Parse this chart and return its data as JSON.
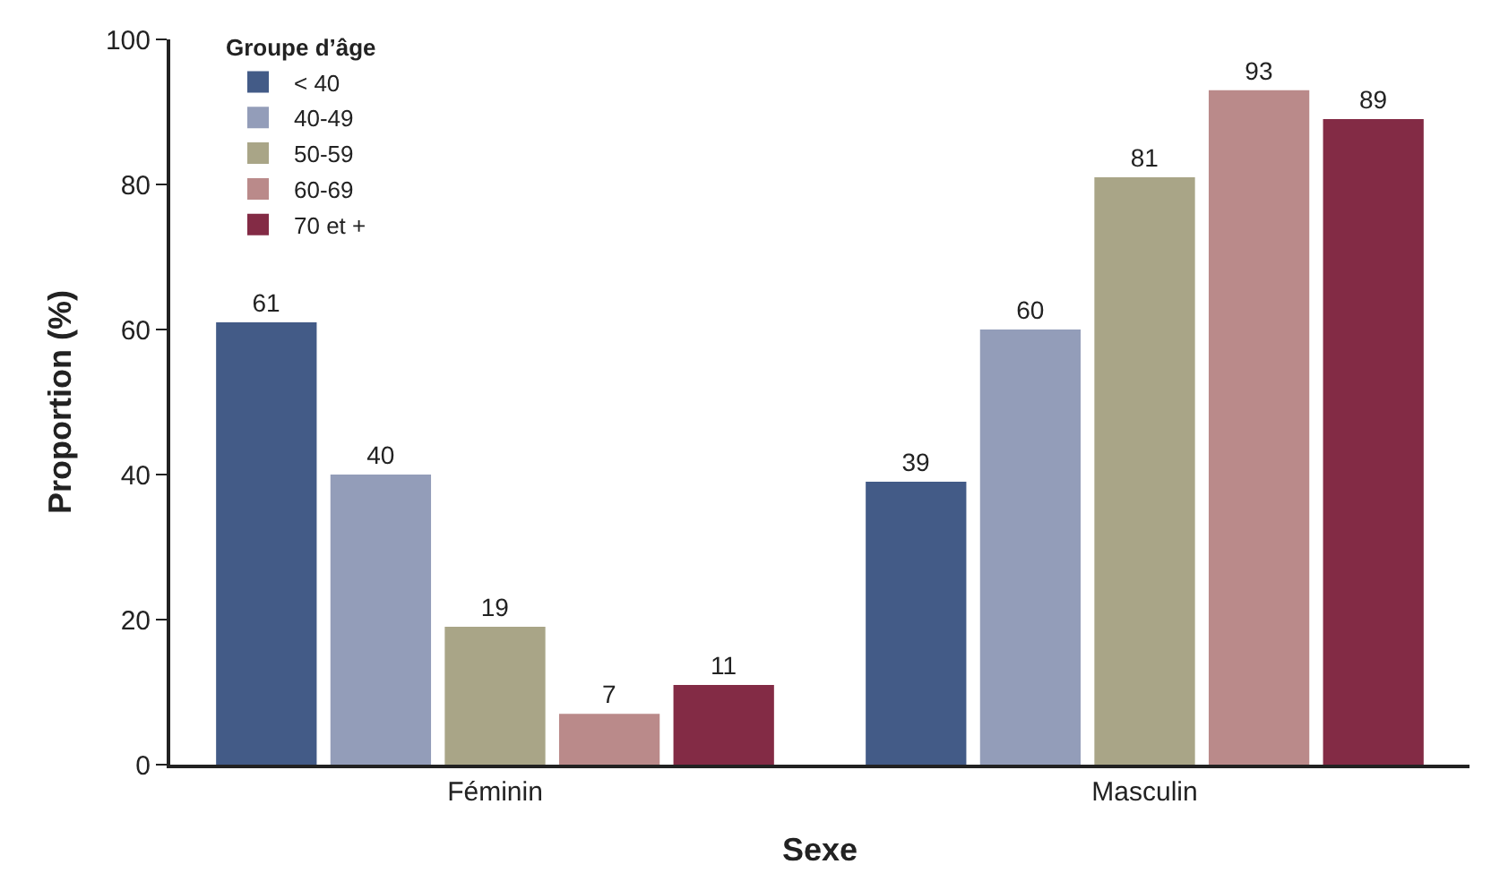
{
  "chart_data": {
    "type": "bar",
    "xlabel": "Sexe",
    "ylabel": "Proportion (%)",
    "legend_title": "Groupe d’âge",
    "categories": [
      "Féminin",
      "Masculin"
    ],
    "series": [
      {
        "name": "< 40",
        "color": "#435b87",
        "values": [
          61,
          39
        ]
      },
      {
        "name": "40-49",
        "color": "#939db9",
        "values": [
          40,
          60
        ]
      },
      {
        "name": "50-59",
        "color": "#a9a587",
        "values": [
          19,
          81
        ]
      },
      {
        "name": "60-69",
        "color": "#ba8a8a",
        "values": [
          7,
          93
        ]
      },
      {
        "name": "70 et +",
        "color": "#832b45",
        "values": [
          11,
          89
        ]
      }
    ],
    "ylim": [
      0,
      100
    ],
    "yticks": [
      0,
      20,
      40,
      60,
      80,
      100
    ],
    "grid": false,
    "legend": "top left",
    "data_labels": true
  }
}
